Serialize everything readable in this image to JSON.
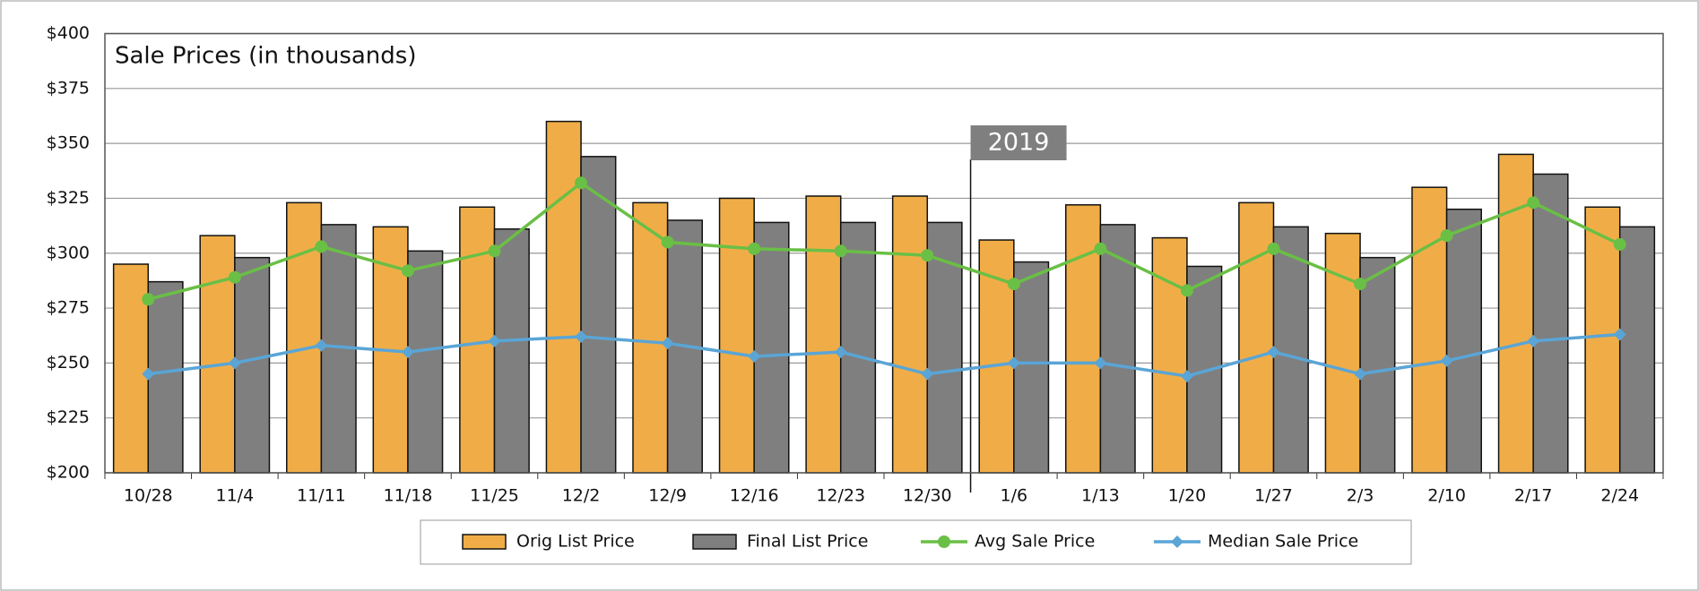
{
  "chart_data": {
    "type": "bar",
    "title": "Sale Prices (in thousands)",
    "categories": [
      "10/28",
      "11/4",
      "11/11",
      "11/18",
      "11/25",
      "12/2",
      "12/9",
      "12/16",
      "12/23",
      "12/30",
      "1/6",
      "1/13",
      "1/20",
      "1/27",
      "2/3",
      "2/10",
      "2/17",
      "2/24"
    ],
    "series": [
      {
        "name": "Orig List Price",
        "type": "bar",
        "color": "#f0ad47",
        "values": [
          295,
          308,
          323,
          312,
          321,
          360,
          323,
          325,
          326,
          326,
          306,
          322,
          307,
          323,
          309,
          330,
          345,
          321
        ]
      },
      {
        "name": "Final List Price",
        "type": "bar",
        "color": "#7f7f7f",
        "values": [
          287,
          298,
          313,
          301,
          311,
          344,
          315,
          314,
          314,
          314,
          296,
          313,
          294,
          312,
          298,
          320,
          336,
          312
        ]
      },
      {
        "name": "Avg Sale Price",
        "type": "line",
        "color": "#6abf45",
        "values": [
          279,
          289,
          303,
          292,
          301,
          332,
          305,
          302,
          301,
          299,
          286,
          302,
          283,
          302,
          286,
          308,
          323,
          304
        ]
      },
      {
        "name": "Median Sale Price",
        "type": "line",
        "color": "#5aa5d6",
        "values": [
          245,
          250,
          258,
          255,
          260,
          262,
          259,
          253,
          255,
          245,
          250,
          250,
          244,
          255,
          245,
          251,
          260,
          263
        ]
      }
    ],
    "ylim": [
      200,
      400
    ],
    "yticks": [
      {
        "value": 200,
        "label": "$200"
      },
      {
        "value": 225,
        "label": "$225"
      },
      {
        "value": 250,
        "label": "$250"
      },
      {
        "value": 275,
        "label": "$275"
      },
      {
        "value": 300,
        "label": "$300"
      },
      {
        "value": 325,
        "label": "$325"
      },
      {
        "value": 350,
        "label": "$350"
      },
      {
        "value": 375,
        "label": "$375"
      },
      {
        "value": 400,
        "label": "$400"
      }
    ],
    "grid": true,
    "legend": "bottom",
    "annotations": [
      {
        "text": "2019",
        "category": "1/6"
      }
    ]
  }
}
